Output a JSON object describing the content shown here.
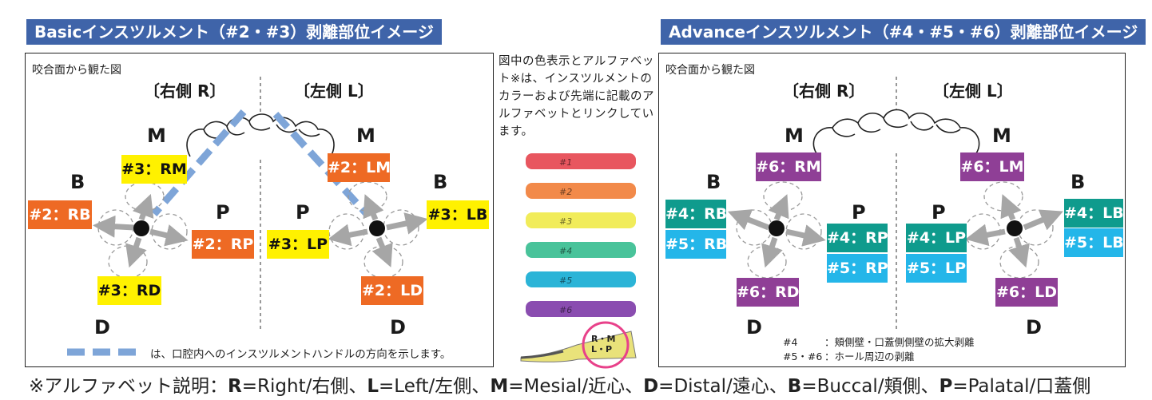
{
  "headers": {
    "basic": "Basicインスツルメント（#2・#3）剥離部位イメージ",
    "advance": "Advanceインスツルメント（#4・#5・#6）剥離部位イメージ"
  },
  "basic": {
    "view_title": "咬合面から観た図",
    "right_side": "〔右側 R〕",
    "left_side": "〔左側 L〕",
    "dirs": {
      "m_left": "M",
      "m_right": "M",
      "b_left": "B",
      "b_right": "B",
      "p_left": "P",
      "p_right": "P",
      "d_left": "D",
      "d_right": "D"
    },
    "labels": {
      "rm": "#3：RM",
      "lm": "#2：LM",
      "rb": "#2：RB",
      "lb": "#3：LB",
      "rp": "#2：RP",
      "lp": "#3：LP",
      "rd": "#3：RD",
      "ld": "#2：LD"
    },
    "legend": "は、口腔内へのインスツルメントハンドルの方向を示します。"
  },
  "note": "図中の色表示とアルファベット※は、インスツルメントのカラーおよび先端に記載のアルファベットとリンクしています。",
  "instruments": [
    {
      "color": "#e8565f",
      "text": "#1"
    },
    {
      "color": "#f28a4a",
      "text": "#2"
    },
    {
      "color": "#f1ec5a",
      "text": "#3"
    },
    {
      "color": "#49c39a",
      "text": "#4"
    },
    {
      "color": "#2bb4d7",
      "text": "#5"
    },
    {
      "color": "#8a4db0",
      "text": "#6"
    }
  ],
  "tip_label": "R・M\nL・P",
  "advance": {
    "view_title": "咬合面から観た図",
    "right_side": "〔右側 R〕",
    "left_side": "〔左側 L〕",
    "dirs": {
      "m_left": "M",
      "m_right": "M",
      "b_left": "B",
      "b_right": "B",
      "p_left": "P",
      "p_right": "P",
      "d_left": "D",
      "d_right": "D"
    },
    "labels": {
      "rm": "#6：RM",
      "lm": "#6：LM",
      "rb4": "#4：RB",
      "rb5": "#5：RB",
      "lb4": "#4：LB",
      "lb5": "#5：LB",
      "rp4": "#4：RP",
      "rp5": "#5：RP",
      "lp4": "#4：LP",
      "lp5": "#5：LP",
      "rd": "#6：RD",
      "ld": "#6：LD"
    },
    "legend_rows": [
      {
        "key": "#4",
        "text": "：頬側壁・口蓋側側壁の拡大剥離"
      },
      {
        "key": "#5・#6",
        "text": "：ホール周辺の剥離"
      }
    ]
  },
  "footer": {
    "prefix": "※アルファベット説明：",
    "items": [
      {
        "k": "R",
        "v": "=Right/右側、"
      },
      {
        "k": "L",
        "v": "=Left/左側、"
      },
      {
        "k": "M",
        "v": "=Mesial/近心、"
      },
      {
        "k": "D",
        "v": "=Distal/遠心、"
      },
      {
        "k": "B",
        "v": "=Buccal/頬側、"
      },
      {
        "k": "P",
        "v": "=Palatal/口蓋側"
      }
    ]
  },
  "colors": {
    "header": "#3f64a9",
    "orange": "#ee6a24",
    "yellow": "#fff100",
    "purple": "#8f3f96",
    "teal": "#0f9b8d",
    "cyan": "#24b6e9",
    "handle": "#7ea5d8",
    "arrow": "#a6a6a6"
  }
}
